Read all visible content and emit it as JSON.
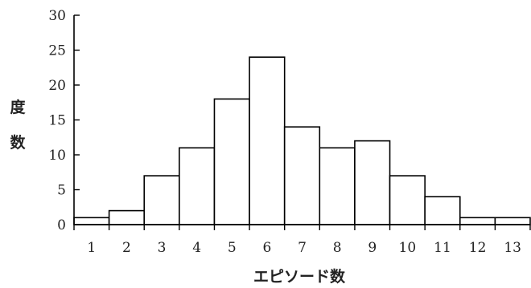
{
  "chart_data": {
    "type": "bar",
    "title": "",
    "xlabel": "エピソード数",
    "ylabel_lines": [
      "度",
      "数"
    ],
    "categories": [
      "1",
      "2",
      "3",
      "4",
      "5",
      "6",
      "7",
      "8",
      "9",
      "10",
      "11",
      "12",
      "13"
    ],
    "values": [
      1,
      2,
      7,
      11,
      18,
      24,
      14,
      11,
      12,
      7,
      4,
      1,
      1
    ],
    "ylim": [
      0,
      30
    ],
    "yticks": [
      "0",
      "5",
      "10",
      "15",
      "20",
      "25",
      "30"
    ],
    "grid": false,
    "bar_fill": "#ffffff",
    "bar_stroke": "#000000"
  }
}
